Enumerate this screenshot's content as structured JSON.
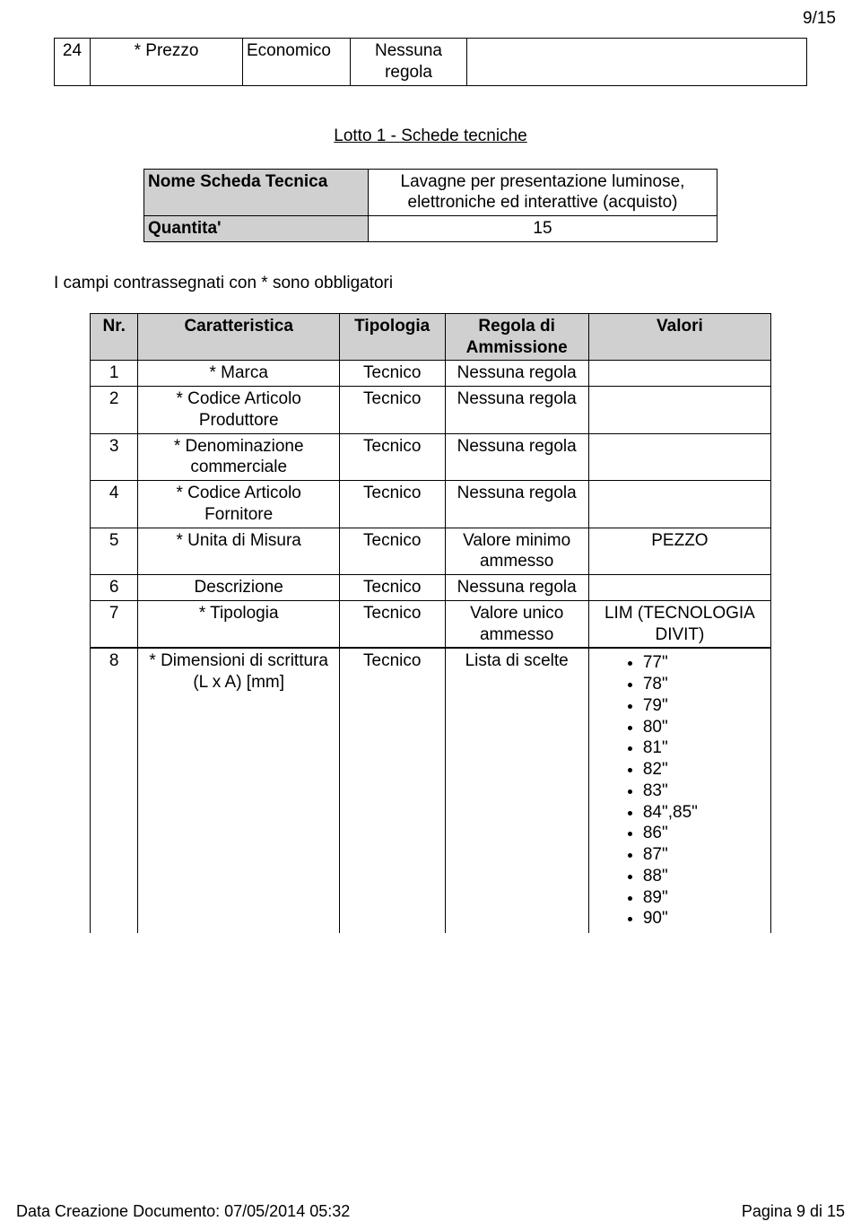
{
  "page_number": "9/15",
  "top_table": {
    "cols": [
      "40",
      "170",
      "120",
      "130",
      "140"
    ],
    "row": {
      "c0": "24",
      "c1": "* Prezzo",
      "c2": "Economico",
      "c3": "Nessuna regola",
      "c4": ""
    }
  },
  "heading": "Lotto 1 - Schede tecniche",
  "meta": {
    "rows": [
      {
        "label": "Nome Scheda Tecnica",
        "value": "Lavagne per presentazione luminose, elettroniche ed interattive (acquisto)"
      },
      {
        "label": "Quantita'",
        "value": "15"
      }
    ]
  },
  "note": "I campi contrassegnati con * sono obbligatori",
  "main_table": {
    "headers": [
      "Nr.",
      "Caratteristica",
      "Tipologia",
      "Regola di Ammissione",
      "Valori"
    ],
    "col_widths": [
      "50",
      "210",
      "110",
      "150",
      "190"
    ],
    "rows": [
      {
        "nr": "1",
        "car": "* Marca",
        "tip": "Tecnico",
        "reg": "Nessuna regola",
        "val": ""
      },
      {
        "nr": "2",
        "car": "* Codice Articolo Produttore",
        "tip": "Tecnico",
        "reg": "Nessuna regola",
        "val": ""
      },
      {
        "nr": "3",
        "car": "* Denominazione commerciale",
        "tip": "Tecnico",
        "reg": "Nessuna regola",
        "val": ""
      },
      {
        "nr": "4",
        "car": "* Codice Articolo Fornitore",
        "tip": "Tecnico",
        "reg": "Nessuna regola",
        "val": ""
      },
      {
        "nr": "5",
        "car": "* Unita di Misura",
        "tip": "Tecnico",
        "reg": "Valore minimo ammesso",
        "val": "PEZZO"
      },
      {
        "nr": "6",
        "car": "Descrizione",
        "tip": "Tecnico",
        "reg": "Nessuna regola",
        "val": ""
      },
      {
        "nr": "7",
        "car": "* Tipologia",
        "tip": "Tecnico",
        "reg": "Valore unico ammesso",
        "val": "LIM (TECNOLOGIA DIVIT)"
      }
    ],
    "row8": {
      "nr": "8",
      "car": "* Dimensioni di scrittura (L x A) [mm]",
      "tip": "Tecnico",
      "reg": "Lista di scelte",
      "val_list": [
        "77\"",
        "78\"",
        "79\"",
        "80\"",
        "81\"",
        "82\"",
        "83\"",
        "84\",85\"",
        "86\"",
        "87\"",
        "88\"",
        "89\"",
        "90\""
      ]
    }
  },
  "footer": {
    "left": "Data Creazione Documento: 07/05/2014 05:32",
    "right": "Pagina 9 di 15"
  }
}
